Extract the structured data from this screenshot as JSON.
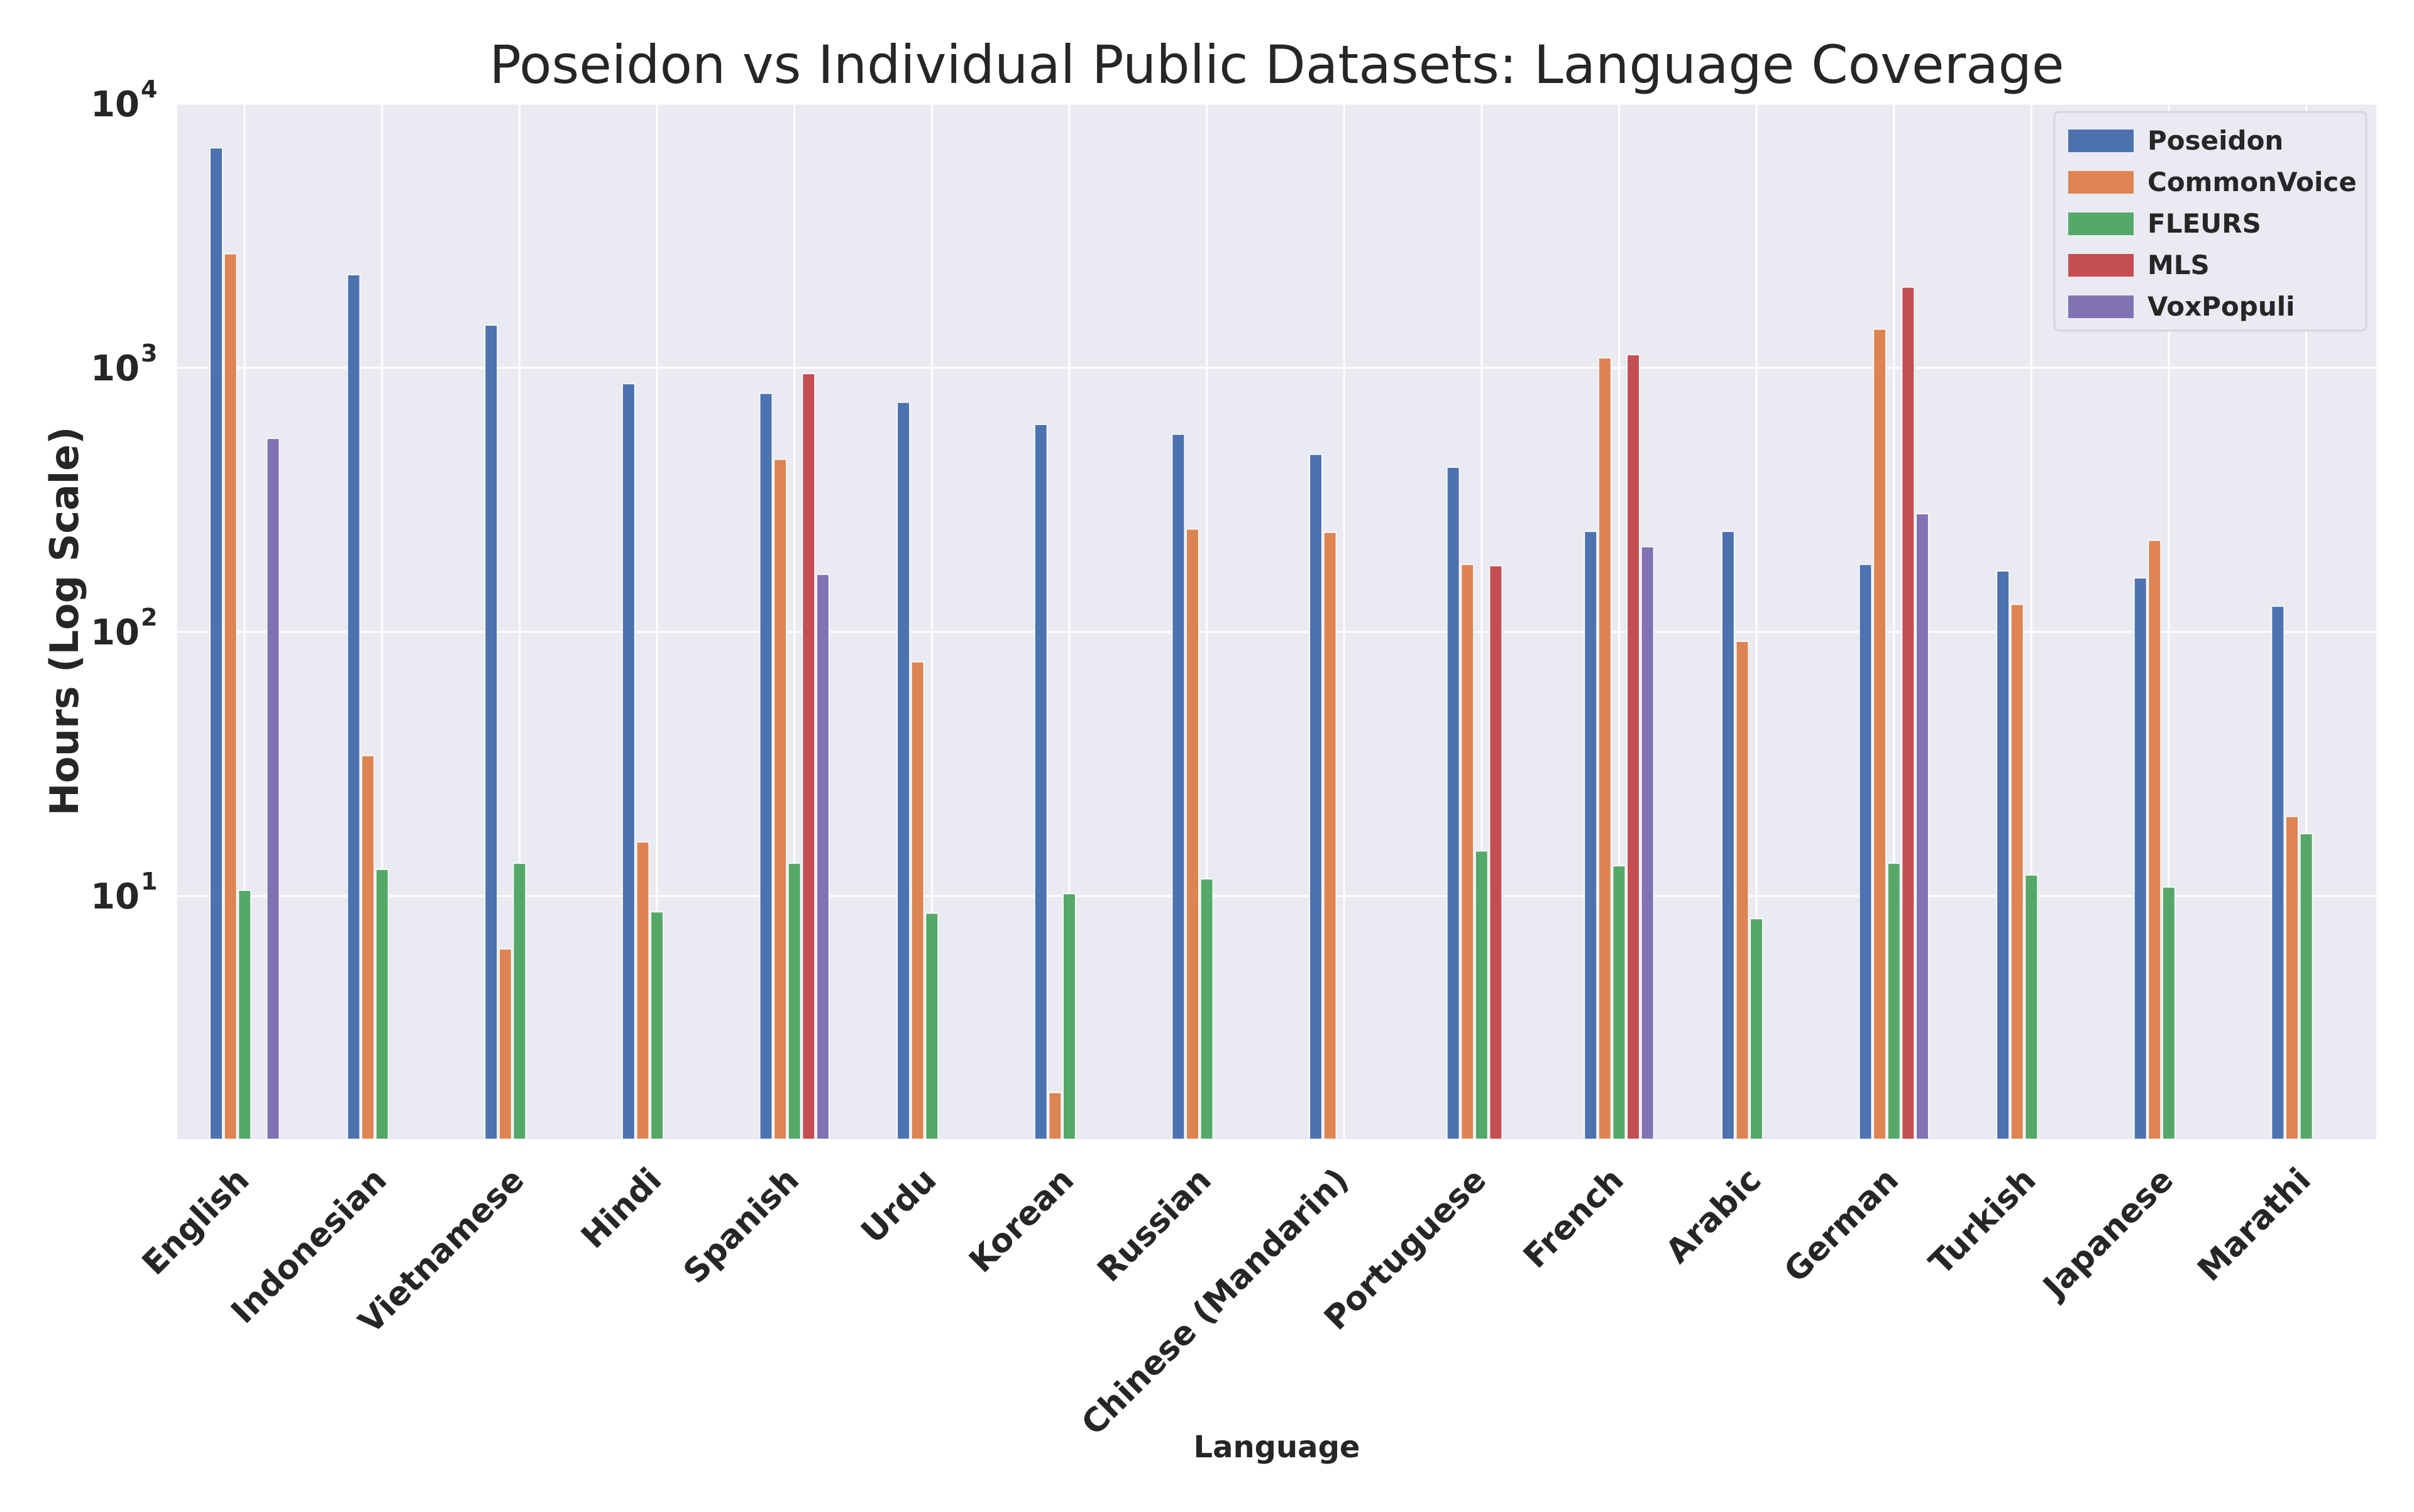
{
  "chart_data": {
    "type": "bar",
    "title": "Poseidon vs Individual Public Datasets: Language Coverage",
    "xlabel": "Language",
    "ylabel": "Hours (Log Scale)",
    "yscale": "log",
    "ylim": [
      1.2,
      10000
    ],
    "yticks": [
      {
        "base": "10",
        "exp": "1",
        "value": 10
      },
      {
        "base": "10",
        "exp": "2",
        "value": 100
      },
      {
        "base": "10",
        "exp": "3",
        "value": 1000
      },
      {
        "base": "10",
        "exp": "4",
        "value": 10000
      }
    ],
    "grid": true,
    "legend_position": "top-right",
    "categories": [
      "English",
      "Indonesian",
      "Vietnamese",
      "Hindi",
      "Spanish",
      "Urdu",
      "Korean",
      "Russian",
      "Chinese (Mandarin)",
      "Portuguese",
      "French",
      "Arabic",
      "German",
      "Turkish",
      "Japanese",
      "Marathi"
    ],
    "series": [
      {
        "name": "Poseidon",
        "color": "#4c72b0",
        "values": [
          6800,
          2250,
          1450,
          870,
          800,
          740,
          610,
          560,
          470,
          420,
          240,
          240,
          180,
          170,
          160,
          125
        ]
      },
      {
        "name": "CommonVoice",
        "color": "#dd8452",
        "values": [
          2700,
          34,
          6.3,
          16,
          450,
          77,
          1.8,
          245,
          238,
          180,
          1090,
          92,
          1400,
          127,
          222,
          20
        ]
      },
      {
        "name": "FLEURS",
        "color": "#55a868",
        "values": [
          10.5,
          12.6,
          13.3,
          8.7,
          13.3,
          8.6,
          10.2,
          11.6,
          null,
          14.8,
          13,
          8.2,
          13.3,
          12,
          10.8,
          17.2
        ]
      },
      {
        "name": "MLS",
        "color": "#c44e52",
        "values": [
          null,
          null,
          null,
          null,
          950,
          null,
          null,
          null,
          null,
          178,
          1120,
          null,
          2020,
          null,
          null,
          null
        ]
      },
      {
        "name": "VoxPopuli",
        "color": "#8172b3",
        "values": [
          540,
          null,
          null,
          null,
          165,
          null,
          null,
          null,
          null,
          null,
          210,
          null,
          280,
          null,
          null,
          null
        ]
      }
    ]
  }
}
